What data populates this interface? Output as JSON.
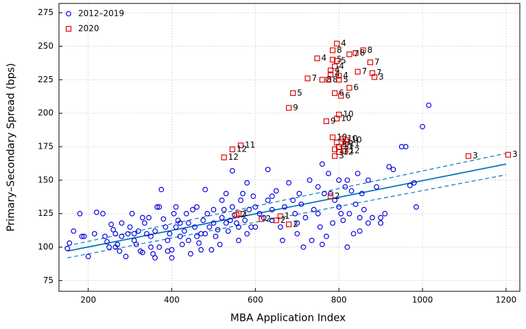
{
  "chart_data": {
    "type": "scatter",
    "x_label": "MBA Application Index",
    "y_label": "Primary–Secondary Spread (bps)",
    "xlim": [
      130,
      1233
    ],
    "ylim": [
      67,
      282
    ],
    "xticks": [
      200,
      400,
      600,
      800,
      1000,
      1200
    ],
    "yticks": [
      75,
      100,
      125,
      150,
      175,
      200,
      225,
      250,
      275
    ],
    "grid": true,
    "legend": "upper left",
    "series": [
      {
        "name": "2012–2019",
        "color": "#0000dd",
        "marker": "circle",
        "x": [
          150,
          155,
          165,
          180,
          185,
          190,
          200,
          215,
          220,
          235,
          240,
          245,
          250,
          255,
          260,
          265,
          270,
          275,
          280,
          290,
          295,
          300,
          305,
          310,
          315,
          320,
          325,
          330,
          335,
          340,
          345,
          350,
          355,
          360,
          365,
          370,
          375,
          380,
          385,
          390,
          395,
          400,
          405,
          410,
          415,
          420,
          425,
          430,
          435,
          440,
          445,
          450,
          455,
          460,
          465,
          470,
          475,
          480,
          485,
          490,
          495,
          500,
          505,
          510,
          515,
          520,
          525,
          530,
          535,
          540,
          545,
          550,
          555,
          560,
          565,
          570,
          575,
          580,
          585,
          590,
          595,
          600,
          610,
          620,
          630,
          640,
          650,
          660,
          665,
          670,
          680,
          690,
          695,
          700,
          705,
          710,
          720,
          730,
          740,
          750,
          755,
          760,
          765,
          770,
          775,
          780,
          790,
          800,
          805,
          810,
          815,
          820,
          825,
          830,
          835,
          840,
          845,
          850,
          855,
          860,
          870,
          880,
          890,
          900,
          910,
          920,
          930,
          950,
          960,
          970,
          980,
          985,
          1000,
          1015,
          545,
          630,
          580,
          640,
          390,
          400,
          420,
          360,
          350,
          460,
          470,
          500,
          530,
          310,
          280,
          265,
          330,
          370,
          410,
          440,
          480,
          520,
          560,
          600,
          640,
          700,
          750,
          800,
          760,
          820,
          850,
          870,
          900,
          785,
          715,
          735
        ],
        "y": [
          99,
          103,
          112,
          125,
          108,
          108,
          93,
          110,
          126,
          125,
          108,
          104,
          100,
          117,
          113,
          110,
          102,
          97,
          108,
          93,
          110,
          115,
          125,
          105,
          102,
          112,
          97,
          96,
          118,
          110,
          122,
          108,
          95,
          92,
          130,
          100,
          143,
          121,
          115,
          105,
          110,
          98,
          125,
          115,
          120,
          108,
          102,
          112,
          125,
          118,
          95,
          128,
          115,
          130,
          103,
          110,
          120,
          143,
          125,
          115,
          98,
          118,
          108,
          113,
          102,
          135,
          128,
          140,
          112,
          120,
          130,
          124,
          118,
          105,
          135,
          140,
          120,
          110,
          128,
          115,
          138,
          130,
          125,
          122,
          135,
          128,
          142,
          115,
          105,
          130,
          148,
          135,
          125,
          110,
          140,
          132,
          122,
          150,
          128,
          145,
          115,
          102,
          140,
          108,
          155,
          140,
          135,
          130,
          125,
          120,
          145,
          150,
          125,
          142,
          110,
          132,
          155,
          122,
          140,
          128,
          150,
          122,
          145,
          122,
          125,
          160,
          158,
          175,
          175,
          146,
          148,
          130,
          190,
          206,
          157,
          158,
          148,
          138,
          97,
          92,
          118,
          112,
          100,
          108,
          98,
          128,
          118,
          110,
          118,
          100,
          122,
          130,
          130,
          105,
          110,
          122,
          115,
          115,
          120,
          118,
          125,
          150,
          162,
          100,
          112,
          118,
          118,
          118,
          100,
          105
        ]
      },
      {
        "name": "2020",
        "color": "#dd0000",
        "marker": "square",
        "x": [
          795,
          785,
          858,
          840,
          825,
          748,
          785,
          795,
          875,
          790,
          780,
          845,
          880,
          780,
          800,
          885,
          725,
          760,
          775,
          800,
          825,
          790,
          805,
          690,
          680,
          800,
          795,
          770,
          785,
          810,
          820,
          795,
          815,
          800,
          790,
          800,
          815,
          790,
          565,
          545,
          525,
          1110,
          1205,
          780,
          560,
          615,
          660,
          650,
          680,
          555
        ],
        "y": [
          252,
          247,
          247,
          245,
          244,
          241,
          240,
          239,
          238,
          235,
          232,
          231,
          230,
          229,
          228,
          227,
          226,
          225,
          225,
          225,
          219,
          215,
          213,
          215,
          204,
          199,
          196,
          194,
          182,
          181,
          180,
          178,
          177,
          175,
          173,
          171,
          172,
          168,
          176,
          173,
          167,
          168,
          169,
          138,
          125,
          121,
          123,
          120,
          117,
          124
        ],
        "labels": [
          "4",
          "8",
          "8",
          "8",
          "7",
          "4",
          "5",
          "5",
          "7",
          "4",
          "4",
          "7",
          "7",
          "4",
          "4",
          "3",
          "7",
          "8",
          "8",
          "5",
          "6",
          "6",
          "6",
          "5",
          "9",
          "10",
          "10",
          "9",
          "10",
          "10",
          "10",
          "11",
          "11",
          "11",
          "12",
          "12",
          "12",
          "3",
          "11",
          "12",
          "12",
          "3",
          "3",
          "2",
          "1",
          "2",
          "1",
          "2",
          "2",
          "2"
        ]
      }
    ],
    "fit": {
      "color": "#0077bb",
      "x": [
        150,
        1200
      ],
      "y": [
        97,
        162
      ],
      "lower": [
        92,
        154
      ],
      "upper": [
        101,
        170
      ]
    }
  }
}
